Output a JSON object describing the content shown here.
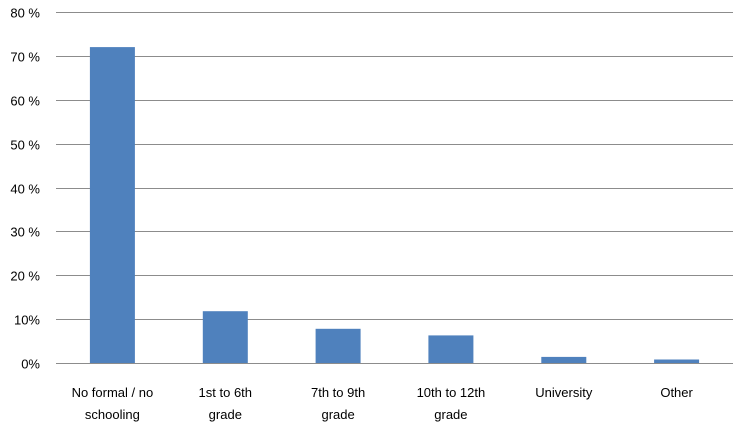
{
  "chart_data": {
    "type": "bar",
    "categories": [
      [
        "No formal / no",
        "schooling"
      ],
      [
        "1st to 6th",
        "grade"
      ],
      [
        "7th to 9th",
        "grade"
      ],
      [
        "10th to 12th",
        "grade"
      ],
      [
        "University"
      ],
      [
        "Other"
      ]
    ],
    "values": [
      72,
      11.8,
      7.8,
      6.3,
      1.4,
      0.8
    ],
    "ylim": [
      0,
      80
    ],
    "yticks": [
      0,
      10,
      20,
      30,
      40,
      50,
      60,
      70,
      80
    ],
    "ytick_labels": [
      "0%",
      "10%",
      "20 %",
      "30 %",
      "40 %",
      "50 %",
      "60 %",
      "70 %",
      "80 %"
    ],
    "title": "",
    "xlabel": "",
    "ylabel": "",
    "grid": true,
    "legend": "none",
    "bar_color": "#4f81bd"
  }
}
